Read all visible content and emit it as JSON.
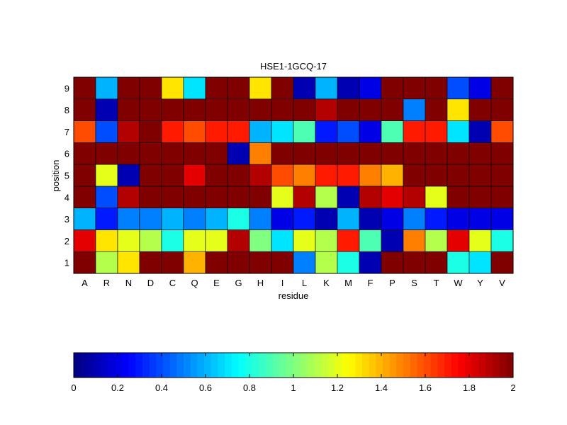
{
  "chart_data": {
    "type": "heatmap",
    "title": "HSE1-1GCQ-17",
    "xlabel": "residue",
    "ylabel": "position",
    "x_categories": [
      "A",
      "R",
      "N",
      "D",
      "C",
      "Q",
      "E",
      "G",
      "H",
      "I",
      "L",
      "K",
      "M",
      "F",
      "P",
      "S",
      "T",
      "W",
      "Y",
      "V"
    ],
    "y_categories": [
      "1",
      "2",
      "3",
      "4",
      "5",
      "6",
      "7",
      "8",
      "9"
    ],
    "values": [
      [
        2.0,
        1.1,
        1.3,
        2.0,
        2.0,
        1.4,
        2.0,
        2.0,
        2.0,
        2.0,
        0.5,
        1.1,
        0.8,
        0.1,
        2.0,
        2.0,
        2.0,
        0.8,
        0.7,
        2.0
      ],
      [
        1.8,
        1.3,
        1.2,
        1.1,
        0.8,
        1.2,
        1.2,
        1.9,
        1.0,
        0.7,
        1.2,
        1.1,
        1.7,
        0.9,
        0.1,
        1.5,
        1.1,
        1.8,
        1.2,
        0.8
      ],
      [
        0.6,
        0.3,
        0.5,
        0.5,
        0.6,
        0.5,
        0.6,
        0.8,
        0.5,
        0.2,
        0.3,
        0.1,
        0.6,
        0.1,
        0.2,
        0.5,
        0.3,
        0.2,
        0.2,
        0.2
      ],
      [
        2.0,
        0.4,
        1.9,
        2.0,
        2.0,
        2.0,
        2.0,
        2.0,
        2.0,
        1.2,
        1.9,
        1.1,
        0.1,
        1.9,
        1.8,
        1.9,
        1.2,
        2.0,
        2.0,
        2.0
      ],
      [
        2.0,
        1.2,
        0.1,
        2.0,
        2.0,
        1.8,
        2.0,
        2.0,
        1.9,
        1.6,
        1.5,
        1.7,
        1.7,
        1.5,
        1.4,
        2.0,
        2.0,
        2.0,
        2.0,
        2.0
      ],
      [
        2.0,
        2.0,
        2.0,
        2.0,
        2.0,
        2.0,
        2.0,
        0.1,
        1.5,
        2.0,
        2.0,
        2.0,
        2.0,
        2.0,
        2.0,
        2.0,
        2.0,
        2.0,
        2.0,
        2.0
      ],
      [
        1.6,
        0.4,
        1.9,
        2.0,
        1.7,
        1.6,
        1.7,
        1.7,
        0.6,
        0.7,
        0.9,
        0.3,
        0.4,
        0.2,
        0.9,
        1.7,
        1.7,
        0.7,
        0.1,
        1.6
      ],
      [
        2.0,
        0.1,
        2.0,
        2.0,
        2.0,
        2.0,
        2.0,
        2.0,
        2.0,
        2.0,
        2.0,
        1.9,
        2.0,
        2.0,
        2.0,
        0.5,
        2.0,
        1.3,
        2.0,
        2.0
      ],
      [
        2.0,
        0.6,
        2.0,
        2.0,
        1.3,
        0.7,
        2.0,
        2.0,
        1.3,
        2.0,
        0.1,
        0.6,
        0.1,
        0.2,
        2.0,
        2.0,
        2.0,
        0.4,
        0.2,
        2.0
      ]
    ],
    "colorbar": {
      "colormap": "jet",
      "range": [
        0,
        2
      ],
      "ticks": [
        0,
        0.2,
        0.4,
        0.6,
        0.8,
        1,
        1.2,
        1.4,
        1.6,
        1.8,
        2
      ],
      "tick_labels": [
        "0",
        "0.2",
        "0.4",
        "0.6",
        "0.8",
        "1",
        "1.2",
        "1.4",
        "1.6",
        "1.8",
        "2"
      ],
      "placement": "bottom"
    }
  }
}
